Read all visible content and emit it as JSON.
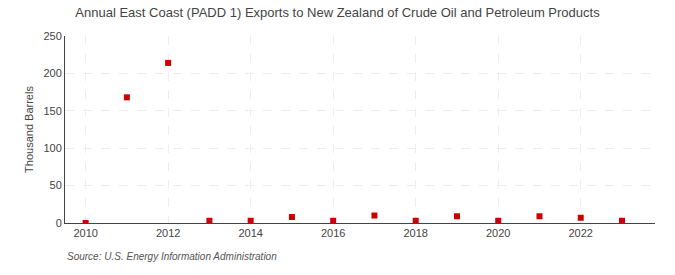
{
  "chart_data": {
    "type": "scatter",
    "title": "Annual East Coast (PADD 1) Exports to New Zealand of Crude Oil and Petroleum Products",
    "y_label": "Thousand Barrels",
    "annotations": [
      "Source: U.S. Energy Information Administration"
    ],
    "x": [
      2010,
      2011,
      2012,
      2013,
      2014,
      2015,
      2016,
      2017,
      2018,
      2019,
      2020,
      2021,
      2022,
      2023
    ],
    "values": [
      0,
      168,
      214,
      3,
      3,
      8,
      3,
      10,
      3,
      9,
      3,
      9,
      7,
      3
    ],
    "color": "#cc0000",
    "marker": "square",
    "xlim": [
      2009.5,
      2023.8
    ],
    "ylim": [
      0,
      250
    ],
    "xticks": [
      2010,
      2012,
      2014,
      2016,
      2018,
      2020,
      2022
    ],
    "yticks": [
      0,
      50,
      100,
      150,
      200,
      250
    ],
    "grid": true
  }
}
